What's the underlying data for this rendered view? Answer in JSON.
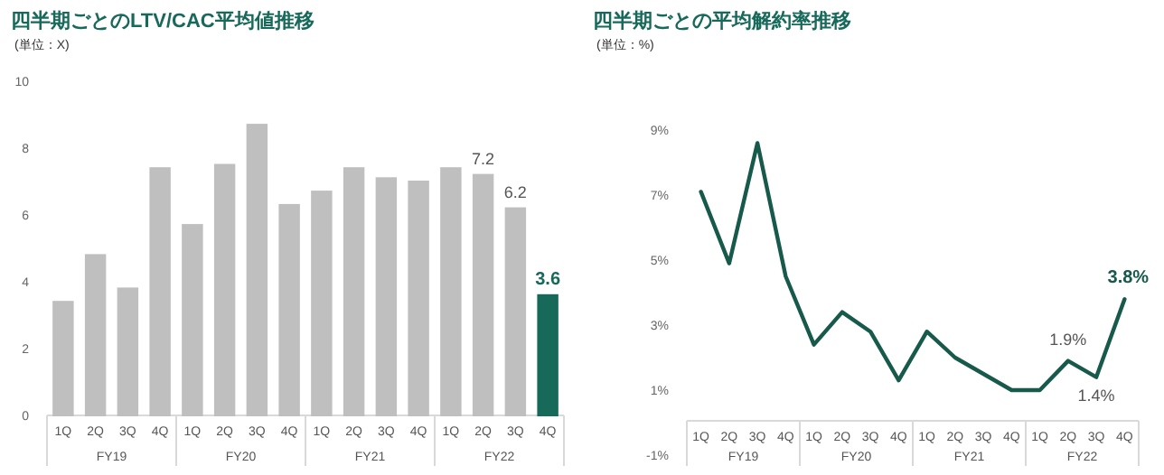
{
  "chart_data": [
    {
      "type": "bar",
      "title": "四半期ごとのLTV/CAC平均値推移",
      "subtitle": "(単位：X)",
      "categories": [
        "1Q",
        "2Q",
        "3Q",
        "4Q",
        "1Q",
        "2Q",
        "3Q",
        "4Q",
        "1Q",
        "2Q",
        "3Q",
        "4Q",
        "1Q",
        "2Q",
        "3Q",
        "4Q"
      ],
      "annotations": [
        "FY19",
        "FY20",
        "FY21",
        "FY22"
      ],
      "values": [
        3.4,
        4.8,
        3.8,
        7.4,
        5.7,
        7.5,
        8.7,
        6.3,
        6.7,
        7.4,
        7.1,
        7.0,
        7.4,
        7.2,
        6.2,
        3.6
      ],
      "colors": [
        "#bfbfbf",
        "#bfbfbf",
        "#bfbfbf",
        "#bfbfbf",
        "#bfbfbf",
        "#bfbfbf",
        "#bfbfbf",
        "#bfbfbf",
        "#bfbfbf",
        "#bfbfbf",
        "#bfbfbf",
        "#bfbfbf",
        "#bfbfbf",
        "#bfbfbf",
        "#bfbfbf",
        "#17695a"
      ],
      "value_labels": [
        null,
        null,
        null,
        null,
        null,
        null,
        null,
        null,
        null,
        null,
        null,
        null,
        null,
        "7.2",
        "6.2",
        "3.6"
      ],
      "ylim": [
        0,
        10
      ],
      "yticks": [
        0,
        2,
        4,
        6,
        8,
        10
      ],
      "grid": false
    },
    {
      "type": "line",
      "title": "四半期ごとの平均解約率推移",
      "subtitle": "(単位：%)",
      "categories": [
        "1Q",
        "2Q",
        "3Q",
        "4Q",
        "1Q",
        "2Q",
        "3Q",
        "4Q",
        "1Q",
        "2Q",
        "3Q",
        "4Q",
        "1Q",
        "2Q",
        "3Q",
        "4Q"
      ],
      "annotations": [
        "FY19",
        "FY20",
        "FY21",
        "FY22"
      ],
      "values": [
        7.1,
        4.9,
        8.6,
        4.5,
        2.4,
        3.4,
        2.8,
        1.3,
        2.8,
        2.0,
        1.5,
        1.0,
        1.0,
        1.9,
        1.4,
        3.8
      ],
      "color": "#17594a",
      "value_labels": [
        null,
        null,
        null,
        null,
        null,
        null,
        null,
        null,
        null,
        null,
        null,
        null,
        null,
        "1.9%",
        "1.4%",
        "3.8%"
      ],
      "ylim": [
        -1,
        9
      ],
      "yticks": [
        {
          "value": -1,
          "label": "-1%"
        },
        {
          "value": 1,
          "label": "1%"
        },
        {
          "value": 3,
          "label": "3%"
        },
        {
          "value": 5,
          "label": "5%"
        },
        {
          "value": 7,
          "label": "7%"
        },
        {
          "value": 9,
          "label": "9%"
        }
      ],
      "marker": "none",
      "line_style": "solid",
      "grid": false
    }
  ]
}
